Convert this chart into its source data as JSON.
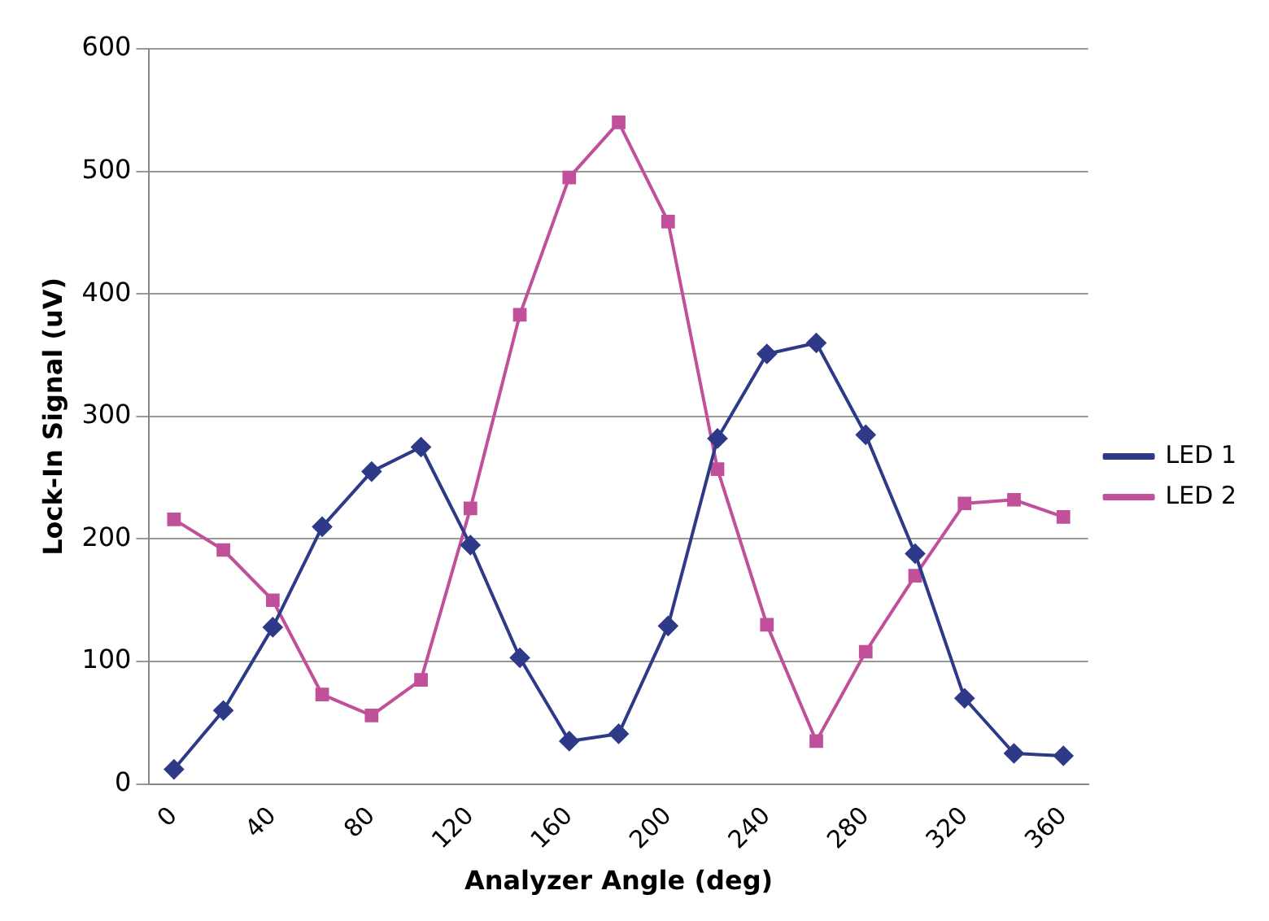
{
  "chart_data": {
    "type": "line",
    "xlabel": "Analyzer Angle (deg)",
    "ylabel": "Lock-In Signal (uV)",
    "categories": [
      "0",
      null,
      "40",
      null,
      "80",
      null,
      "120",
      null,
      "160",
      null,
      "200",
      null,
      "240",
      null,
      "280",
      null,
      "320",
      null,
      "360"
    ],
    "series": [
      {
        "name": "LED 1",
        "color": "#2e3a87",
        "marker": "diamond",
        "values": [
          12,
          60,
          128,
          210,
          255,
          275,
          195,
          103,
          35,
          41,
          129,
          282,
          351,
          360,
          285,
          188,
          70,
          25,
          23
        ]
      },
      {
        "name": "LED 2",
        "color": "#c0509a",
        "marker": "square",
        "values": [
          216,
          191,
          150,
          73,
          56,
          85,
          225,
          383,
          495,
          540,
          459,
          257,
          130,
          35,
          108,
          170,
          229,
          232,
          218
        ]
      }
    ],
    "ylim": [
      0,
      600
    ],
    "yticks": [
      0,
      100,
      200,
      300,
      400,
      500,
      600
    ],
    "grid": "y",
    "legend": "right",
    "line_style": "solid"
  }
}
